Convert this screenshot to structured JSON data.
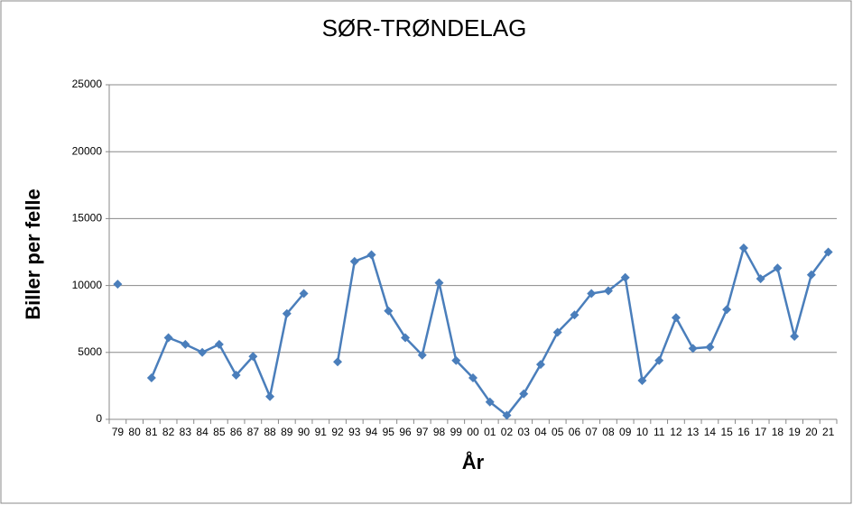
{
  "chart_data": {
    "type": "line",
    "title": "SØR-TRØNDELAG",
    "x_label": "År",
    "y_label": "Biller per felle",
    "categories": [
      "79",
      "80",
      "81",
      "82",
      "83",
      "84",
      "85",
      "86",
      "87",
      "88",
      "89",
      "90",
      "91",
      "92",
      "93",
      "94",
      "95",
      "96",
      "97",
      "98",
      "99",
      "00",
      "01",
      "02",
      "03",
      "04",
      "05",
      "06",
      "07",
      "08",
      "09",
      "10",
      "11",
      "12",
      "13",
      "14",
      "15",
      "16",
      "17",
      "18",
      "19",
      "20",
      "21"
    ],
    "values": [
      10100,
      null,
      3100,
      6100,
      5600,
      5000,
      5600,
      3300,
      4700,
      1700,
      7900,
      9400,
      null,
      4300,
      11800,
      12300,
      8100,
      6100,
      4800,
      10200,
      4400,
      3100,
      1300,
      300,
      1900,
      4100,
      6500,
      7800,
      9400,
      9600,
      10600,
      2900,
      4400,
      7600,
      5300,
      5400,
      8200,
      12800,
      10500,
      11300,
      6200,
      10800,
      12500
    ],
    "color": "#4a7ebb",
    "ylim": [
      0,
      25000
    ],
    "yticks": [
      0,
      5000,
      10000,
      15000,
      20000,
      25000
    ],
    "grid": true
  }
}
